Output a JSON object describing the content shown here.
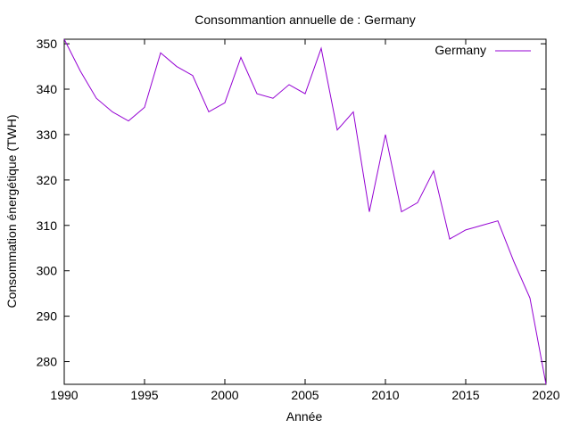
{
  "chart_data": {
    "type": "line",
    "title": "Consommantion annuelle de : Germany",
    "xlabel": "Année",
    "ylabel": "Consommation énergétique (TWH)",
    "xlim": [
      1990,
      2020
    ],
    "ylim": [
      275,
      351
    ],
    "x_ticks": [
      1990,
      1995,
      2000,
      2005,
      2010,
      2015,
      2020
    ],
    "y_ticks": [
      280,
      290,
      300,
      310,
      320,
      330,
      340,
      350
    ],
    "legend_position": "top-right",
    "grid": false,
    "series": [
      {
        "name": "Germany",
        "color": "#9400d3",
        "x": [
          1990,
          1991,
          1992,
          1993,
          1994,
          1995,
          1996,
          1997,
          1998,
          1999,
          2000,
          2001,
          2002,
          2003,
          2004,
          2005,
          2006,
          2007,
          2008,
          2009,
          2010,
          2011,
          2012,
          2013,
          2014,
          2015,
          2016,
          2017,
          2018,
          2019,
          2020
        ],
        "values": [
          351,
          344,
          338,
          335,
          333,
          336,
          348,
          345,
          343,
          335,
          337,
          347,
          339,
          338,
          341,
          339,
          349,
          331,
          335,
          313,
          330,
          313,
          315,
          322,
          307,
          309,
          310,
          311,
          302,
          294,
          275
        ]
      }
    ]
  }
}
